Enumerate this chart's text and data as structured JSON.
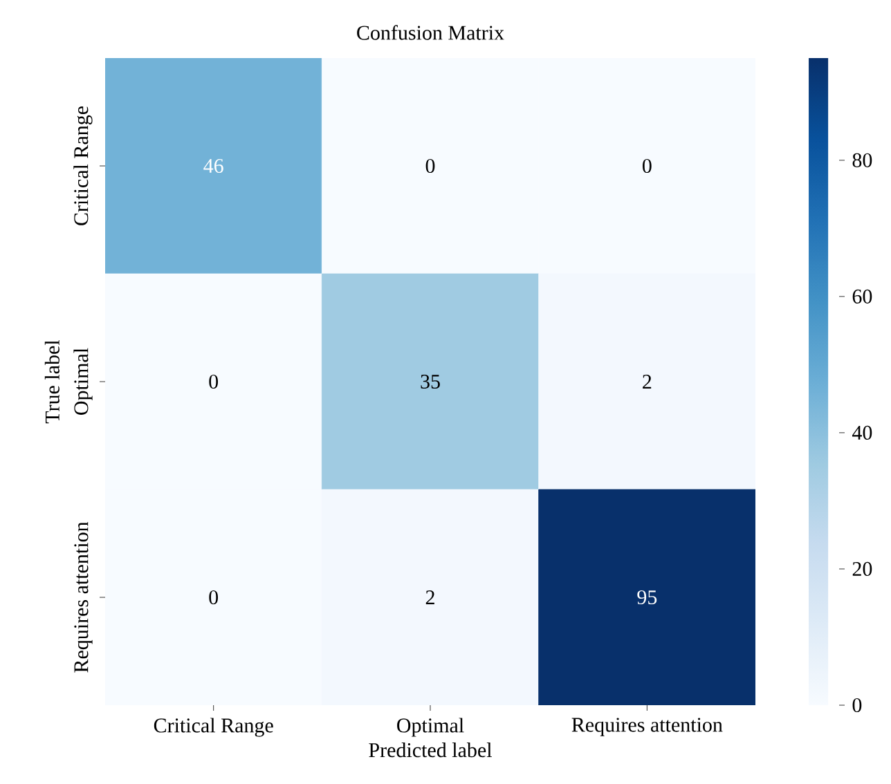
{
  "chart_data": {
    "type": "heatmap",
    "title": "Confusion Matrix",
    "xlabel": "Predicted label",
    "ylabel": "True label",
    "categories": [
      "Critical Range",
      "Optimal",
      "Requires attention"
    ],
    "y_categories": [
      "Critical Range",
      "Optimal",
      "Requires attention"
    ],
    "cells": [
      [
        46,
        0,
        0
      ],
      [
        0,
        35,
        2
      ],
      [
        0,
        2,
        95
      ]
    ],
    "clim": [
      0,
      95
    ],
    "cticks": [
      0,
      20,
      40,
      60,
      80
    ],
    "data_labels": true
  }
}
